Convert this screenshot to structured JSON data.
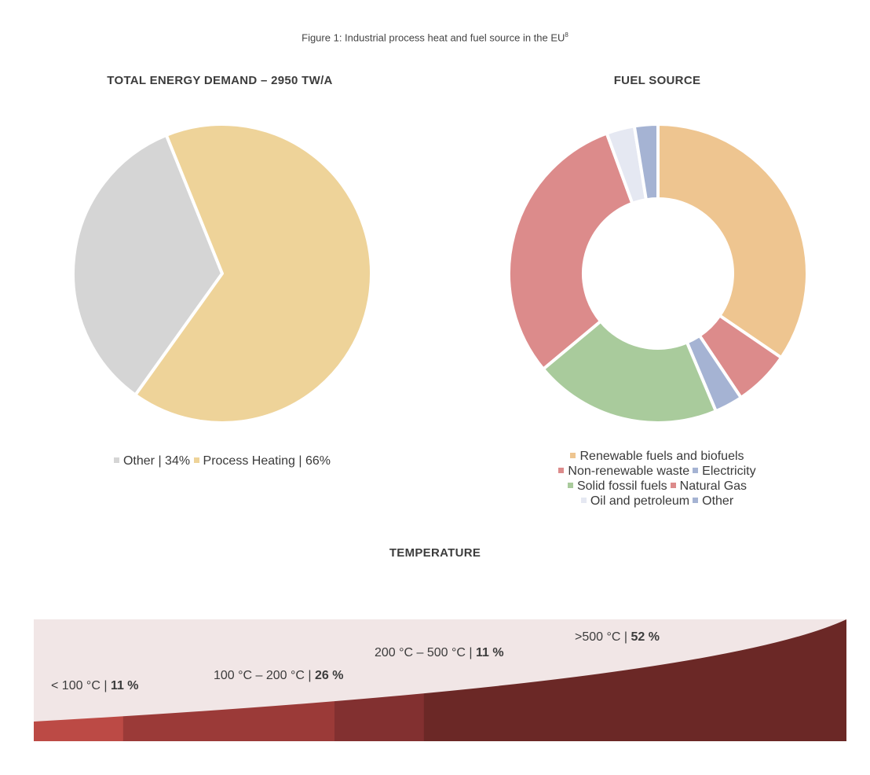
{
  "caption": {
    "text": "Figure 1: Industrial process heat and fuel source in the EU",
    "sup": "8"
  },
  "chart_data": [
    {
      "type": "pie",
      "title": "TOTAL ENERGY DEMAND – 2950 TW/A",
      "slices": [
        {
          "label": "Other",
          "value": 34,
          "legend_text": "Other | 34%",
          "color": "#d5d5d5"
        },
        {
          "label": "Process Heating",
          "value": 66,
          "legend_text": "Process Heating | 66%",
          "color": "#eed399"
        }
      ],
      "legend_placement": "bottom"
    },
    {
      "type": "pie",
      "subtype": "donut",
      "title": "FUEL SOURCE",
      "slices": [
        {
          "label": "Renewable fuels and biofuels",
          "value": 34,
          "color": "#eec590"
        },
        {
          "label": "Non-renewable waste",
          "value": 6,
          "color": "#dc8b8b"
        },
        {
          "label": "Electricity",
          "value": 3,
          "color": "#a5b3d3"
        },
        {
          "label": "Solid fossil fuels",
          "value": 20,
          "color": "#a9cb9c"
        },
        {
          "label": "Natural Gas",
          "value": 30,
          "color": "#dc8b8b"
        },
        {
          "label": "Oil and petroleum",
          "value": 3,
          "color": "#e5e8f2"
        },
        {
          "label": "Other",
          "value": 2.5,
          "color": "#a5b3d3"
        }
      ],
      "legend_rows": [
        [
          0
        ],
        [
          1,
          2
        ],
        [
          3,
          4
        ],
        [
          5,
          6
        ]
      ],
      "legend_placement": "bottom"
    },
    {
      "type": "area",
      "title": "TEMPERATURE",
      "bands": [
        {
          "range": "< 100 °C",
          "percent": "11 %",
          "value": 11,
          "color": "#bc4a45"
        },
        {
          "range": "100 °C – 200 °C",
          "percent": "26 %",
          "value": 26,
          "color": "#9b3a38"
        },
        {
          "range": "200 °C – 500 °C",
          "percent": "11 %",
          "value": 11,
          "color": "#823030"
        },
        {
          "range": ">500 °C",
          "percent": "52 %",
          "value": 52,
          "color": "#6b2826"
        }
      ],
      "background_color": "#f1e6e6"
    }
  ]
}
